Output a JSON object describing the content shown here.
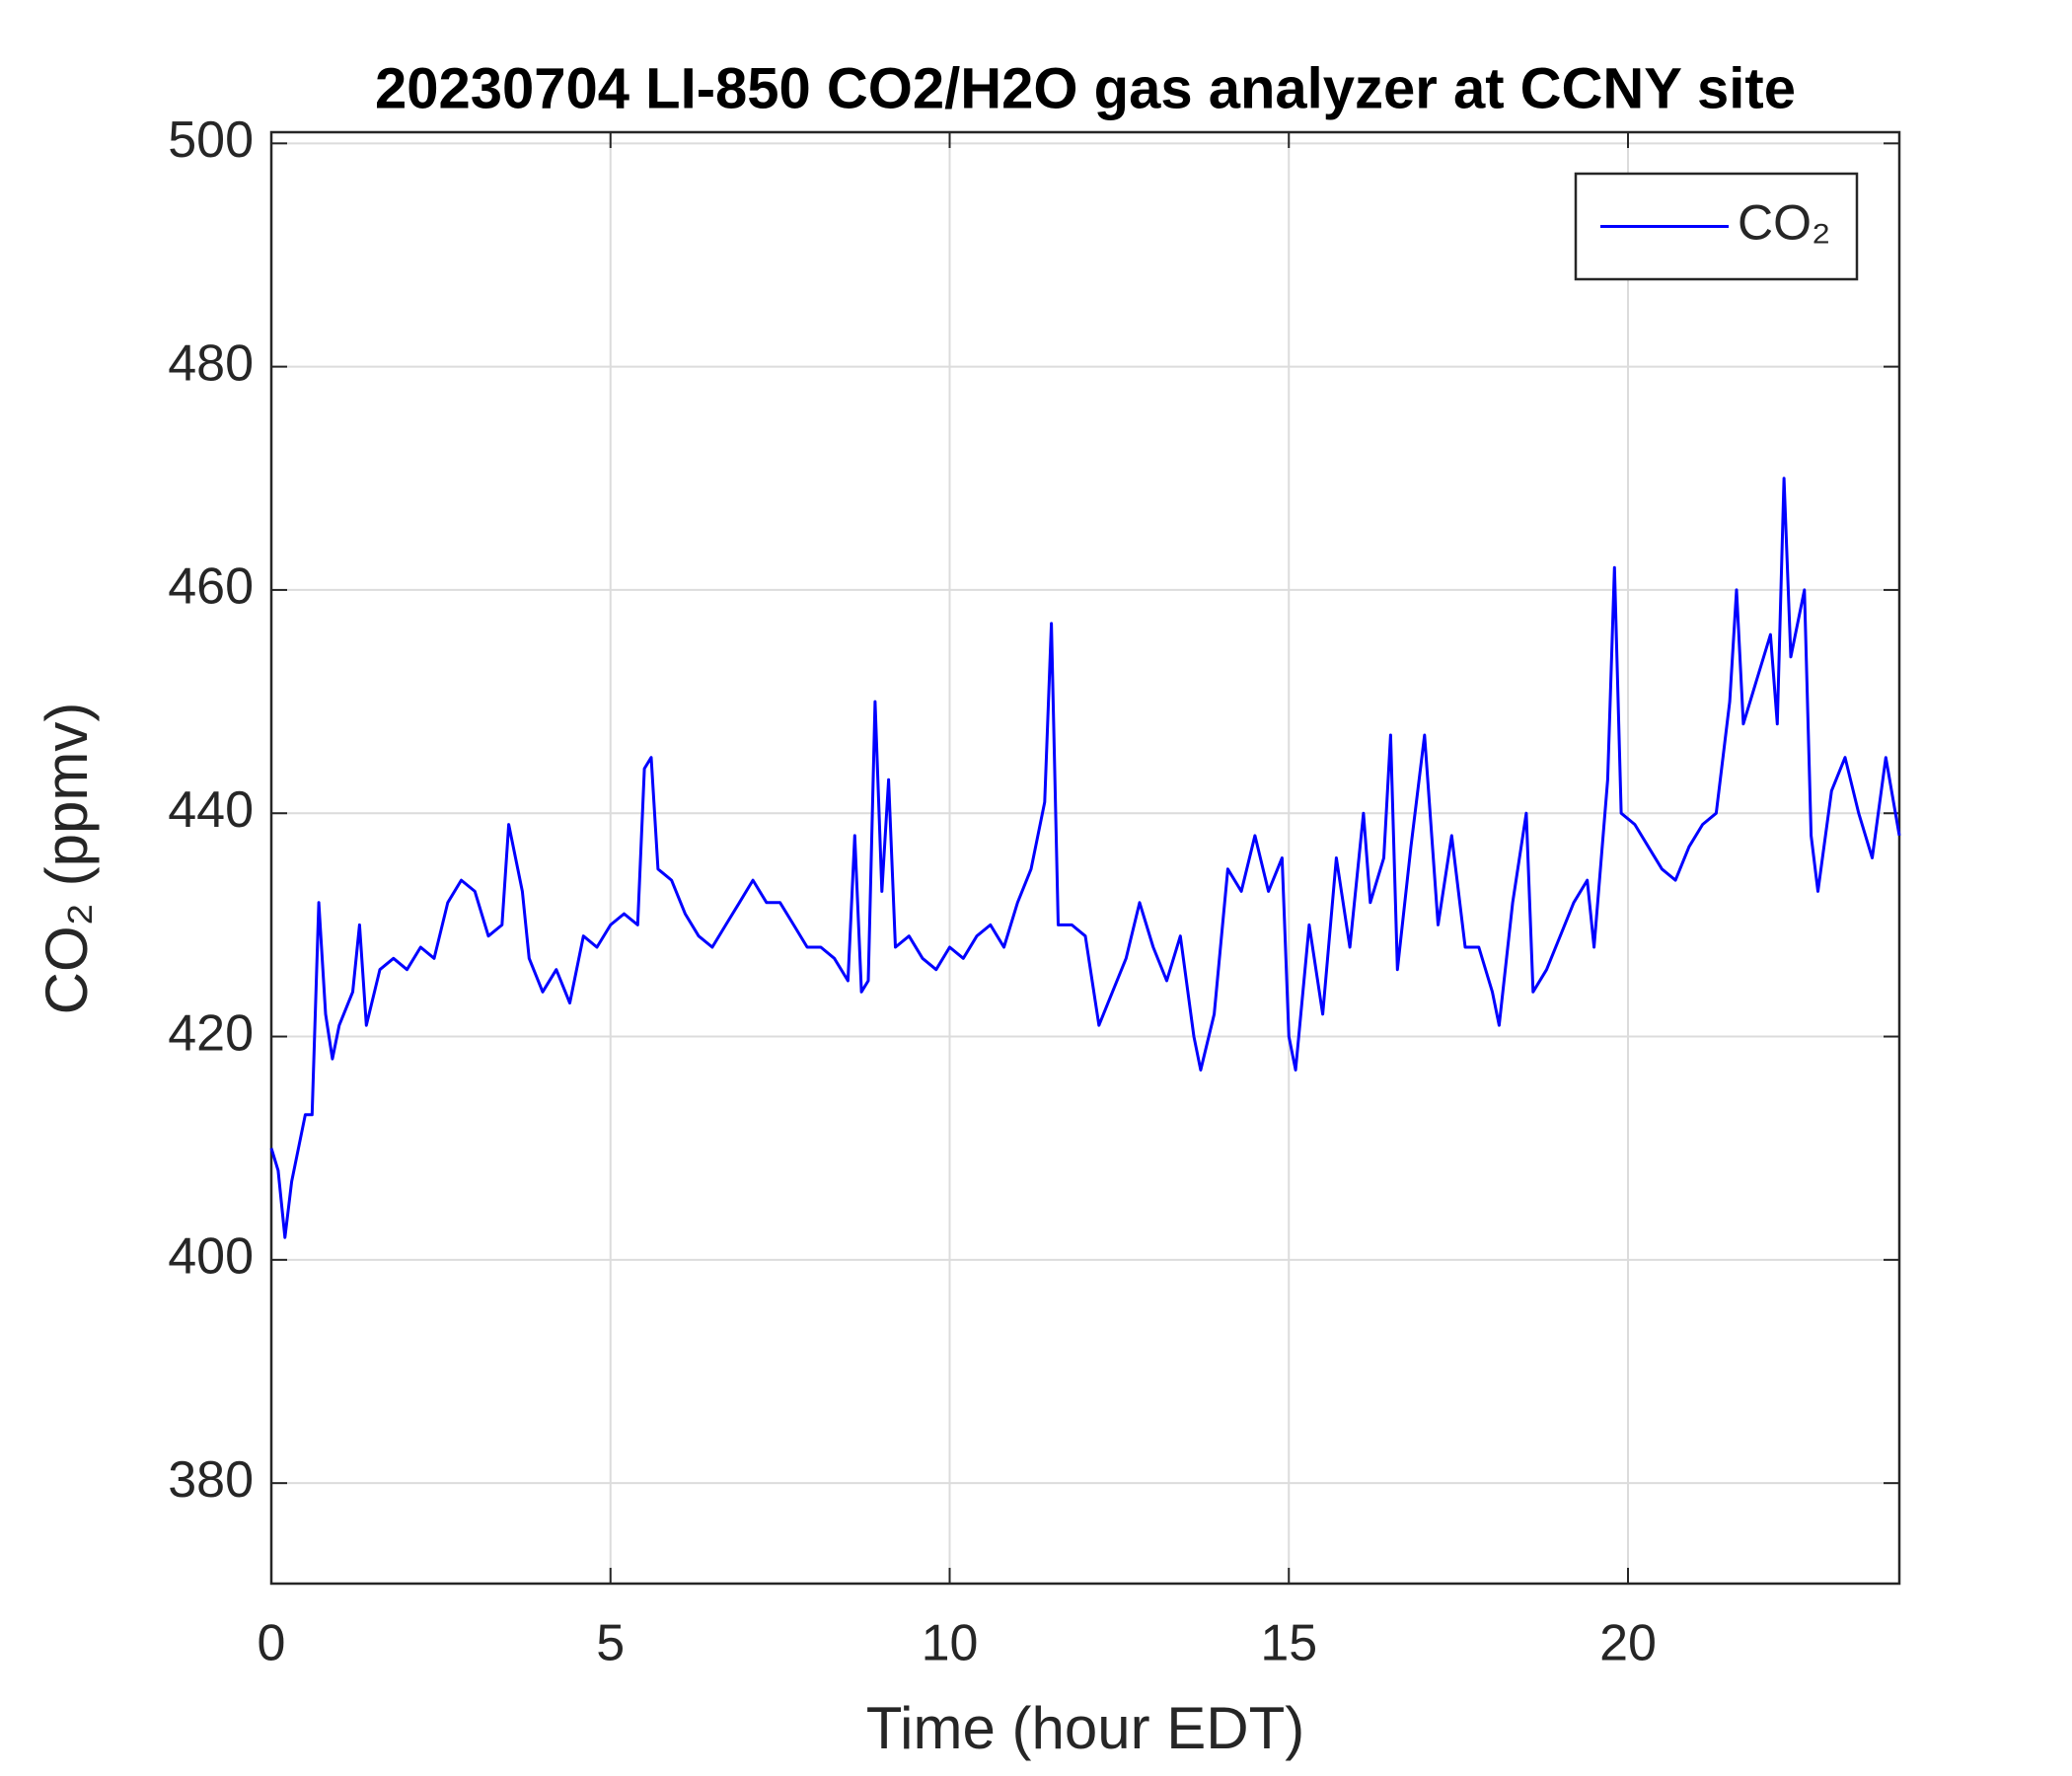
{
  "chart_data": {
    "type": "line",
    "title": "20230704 LI-850 CO2/H2O gas analyzer at CCNY site",
    "x_label": "Time (hour EDT)",
    "y_label": "CO₂ (ppmv)",
    "xlim": [
      0,
      24
    ],
    "xticks": [
      0,
      5,
      10,
      15,
      20
    ],
    "ylim": [
      371,
      501
    ],
    "yticks": [
      380,
      400,
      420,
      440,
      460,
      480,
      500
    ],
    "grid": true,
    "legend_position": "upper right",
    "x": [
      0,
      0.1,
      0.2,
      0.3,
      0.5,
      0.6,
      0.7,
      0.8,
      0.9,
      1.0,
      1.2,
      1.3,
      1.4,
      1.6,
      1.8,
      2.0,
      2.2,
      2.4,
      2.6,
      2.8,
      3.0,
      3.2,
      3.4,
      3.5,
      3.7,
      3.8,
      4.0,
      4.2,
      4.4,
      4.6,
      4.8,
      5.0,
      5.2,
      5.4,
      5.5,
      5.6,
      5.7,
      5.9,
      6.1,
      6.3,
      6.5,
      6.7,
      6.9,
      7.1,
      7.3,
      7.5,
      7.7,
      7.9,
      8.1,
      8.3,
      8.5,
      8.6,
      8.7,
      8.8,
      8.9,
      9.0,
      9.1,
      9.2,
      9.4,
      9.6,
      9.8,
      10.0,
      10.2,
      10.4,
      10.6,
      10.8,
      11.0,
      11.2,
      11.4,
      11.5,
      11.6,
      11.8,
      12.0,
      12.2,
      12.4,
      12.6,
      12.8,
      13.0,
      13.2,
      13.4,
      13.6,
      13.7,
      13.9,
      14.1,
      14.3,
      14.5,
      14.7,
      14.9,
      15.0,
      15.1,
      15.3,
      15.5,
      15.7,
      15.9,
      16.1,
      16.2,
      16.4,
      16.5,
      16.6,
      16.8,
      17.0,
      17.2,
      17.4,
      17.6,
      17.8,
      18.0,
      18.1,
      18.3,
      18.5,
      18.6,
      18.8,
      19.0,
      19.2,
      19.4,
      19.5,
      19.7,
      19.8,
      19.9,
      20.1,
      20.3,
      20.5,
      20.7,
      20.9,
      21.1,
      21.3,
      21.5,
      21.6,
      21.7,
      21.9,
      22.1,
      22.2,
      22.3,
      22.4,
      22.6,
      22.7,
      22.8,
      23.0,
      23.2,
      23.4,
      23.6,
      23.8,
      24.0
    ],
    "series": [
      {
        "name": "CO₂",
        "color": "#0000ff",
        "values": [
          410,
          408,
          402,
          407,
          413,
          413,
          432,
          422,
          418,
          421,
          424,
          430,
          421,
          426,
          427,
          426,
          428,
          427,
          432,
          434,
          433,
          429,
          430,
          439,
          433,
          427,
          424,
          426,
          423,
          429,
          428,
          430,
          431,
          430,
          444,
          445,
          435,
          434,
          431,
          429,
          428,
          430,
          432,
          434,
          432,
          432,
          430,
          428,
          428,
          427,
          425,
          438,
          424,
          425,
          450,
          433,
          443,
          428,
          429,
          427,
          426,
          428,
          427,
          429,
          430,
          428,
          432,
          435,
          441,
          457,
          430,
          430,
          429,
          421,
          424,
          427,
          432,
          428,
          425,
          429,
          420,
          417,
          422,
          435,
          433,
          438,
          433,
          436,
          420,
          417,
          430,
          422,
          436,
          428,
          440,
          432,
          436,
          447,
          426,
          437,
          447,
          430,
          438,
          428,
          428,
          424,
          421,
          432,
          440,
          424,
          426,
          429,
          432,
          434,
          428,
          443,
          462,
          440,
          439,
          437,
          435,
          434,
          437,
          439,
          440,
          450,
          460,
          448,
          452,
          456,
          448,
          470,
          454,
          460,
          438,
          433,
          442,
          445,
          440,
          436,
          445,
          438
        ]
      }
    ]
  }
}
